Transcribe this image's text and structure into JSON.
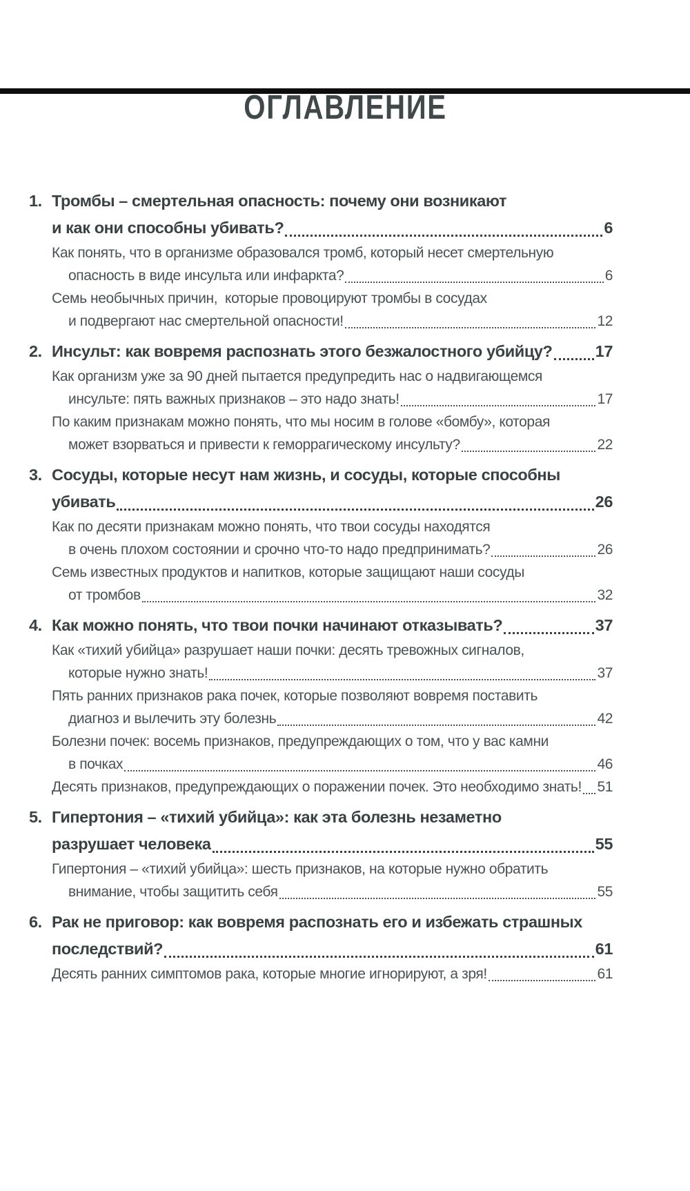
{
  "page": {
    "title": "ОГЛАВЛЕНИЕ",
    "background_color": "#ffffff",
    "text_color": "#3d4345"
  },
  "toc": {
    "entries": [
      {
        "kind": "chapter",
        "num": "1.",
        "page": "6",
        "lines": [
          "Тромбы – смертельная опасность: почему они возникают",
          "и как они способны убивать?"
        ]
      },
      {
        "kind": "sub",
        "num": null,
        "page": "6",
        "lines": [
          "Как понять, что в организме образовался тромб, который несет смертельную",
          "опасность в виде инсульта или инфаркта?"
        ]
      },
      {
        "kind": "sub",
        "num": null,
        "page": "12",
        "lines": [
          "Семь необычных причин,  которые провоцируют тромбы в сосудах",
          "и подвергают нас смертельной опасности!"
        ]
      },
      {
        "kind": "chapter",
        "num": "2.",
        "page": "17",
        "lines": [
          "Инсульт: как вовремя распознать этого безжалостного убийцу?"
        ]
      },
      {
        "kind": "sub",
        "num": null,
        "page": "17",
        "lines": [
          "Как организм уже за 90 дней пытается предупредить нас о надвигающемся",
          "инсульте: пять важных признаков – это надо знать!"
        ]
      },
      {
        "kind": "sub",
        "num": null,
        "page": "22",
        "lines": [
          "По каким признакам можно понять, что мы носим в голове «бомбу», которая",
          "может взорваться и привести к геморрагическому инсульту?"
        ]
      },
      {
        "kind": "chapter",
        "num": "3.",
        "page": "26",
        "lines": [
          "Сосуды, которые несут нам жизнь, и сосуды, которые способны",
          "убивать"
        ]
      },
      {
        "kind": "sub",
        "num": null,
        "page": "26",
        "lines": [
          "Как по десяти признакам можно понять, что твои сосуды находятся",
          "в очень плохом состоянии и срочно что-то надо предпринимать?"
        ]
      },
      {
        "kind": "sub",
        "num": null,
        "page": "32",
        "lines": [
          "Семь известных продуктов и напитков, которые защищают наши сосуды",
          "от тромбов"
        ]
      },
      {
        "kind": "chapter",
        "num": "4.",
        "page": "37",
        "lines": [
          "Как можно понять, что твои почки начинают отказывать?"
        ]
      },
      {
        "kind": "sub",
        "num": null,
        "page": "37",
        "lines": [
          "Как «тихий убийца» разрушает наши почки: десять тревожных сигналов,",
          "которые нужно знать!"
        ]
      },
      {
        "kind": "sub",
        "num": null,
        "page": "42",
        "lines": [
          "Пять ранних признаков рака почек, которые позволяют вовремя поставить",
          "диагноз и вылечить эту болезнь"
        ]
      },
      {
        "kind": "sub",
        "num": null,
        "page": "46",
        "lines": [
          "Болезни почек: восемь признаков, предупреждающих о том, что у вас камни",
          "в почках"
        ]
      },
      {
        "kind": "sub",
        "num": null,
        "page": "51",
        "lines": [
          "Десять признаков, предупреждающих о поражении почек. Это необходимо знать!"
        ]
      },
      {
        "kind": "chapter",
        "num": "5.",
        "page": "55",
        "lines": [
          "Гипертония – «тихий убийца»: как эта болезнь незаметно",
          "разрушает человека"
        ]
      },
      {
        "kind": "sub",
        "num": null,
        "page": "55",
        "lines": [
          "Гипертония – «тихий убийца»: шесть признаков, на которые нужно обратить",
          "внимание, чтобы защитить себя"
        ]
      },
      {
        "kind": "chapter",
        "num": "6.",
        "page": "61",
        "lines": [
          "Рак не приговор: как вовремя распознать его и избежать страшных",
          "последствий?"
        ]
      },
      {
        "kind": "sub",
        "num": null,
        "page": "61",
        "lines": [
          "Десять ранних симптомов рака, которые многие игнорируют, а зря!"
        ]
      }
    ]
  }
}
